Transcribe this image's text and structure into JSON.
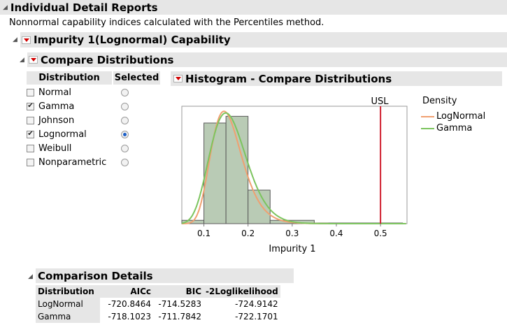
{
  "report": {
    "title": "Individual Detail Reports",
    "note": "Nonnormal capability indices calculated with the Percentiles method."
  },
  "capability": {
    "title": "Impurity 1(Lognormal) Capability"
  },
  "compare": {
    "title": "Compare Distributions",
    "col_distribution": "Distribution",
    "col_selected": "Selected",
    "rows": [
      {
        "label": "Normal",
        "checked": false,
        "selected": false
      },
      {
        "label": "Gamma",
        "checked": true,
        "selected": false
      },
      {
        "label": "Johnson",
        "checked": false,
        "selected": false
      },
      {
        "label": "Lognormal",
        "checked": true,
        "selected": true
      },
      {
        "label": "Weibull",
        "checked": false,
        "selected": false
      },
      {
        "label": "Nonparametric",
        "checked": false,
        "selected": false
      }
    ]
  },
  "histogram": {
    "title": "Histogram - Compare Distributions",
    "usl_label": "USL",
    "legend_title": "Density",
    "legend": [
      {
        "name": "LogNormal",
        "color": "#f0a070"
      },
      {
        "name": "Gamma",
        "color": "#7cc45e"
      }
    ]
  },
  "chart_data": {
    "type": "histogram",
    "xlabel": "Impurity 1",
    "xlim": [
      0.05,
      0.56
    ],
    "xticks": [
      "0.1",
      "0.2",
      "0.3",
      "0.4",
      "0.5"
    ],
    "xtick_values": [
      0.1,
      0.2,
      0.3,
      0.4,
      0.5
    ],
    "usl": 0.5,
    "bins": [
      {
        "from": 0.05,
        "to": 0.1,
        "height": 0.02
      },
      {
        "from": 0.1,
        "to": 0.15,
        "height": 0.6
      },
      {
        "from": 0.15,
        "to": 0.2,
        "height": 0.64
      },
      {
        "from": 0.2,
        "to": 0.25,
        "height": 0.2
      },
      {
        "from": 0.25,
        "to": 0.35,
        "height": 0.02
      },
      {
        "from": 0.35,
        "to": 0.55,
        "height": 0.004
      }
    ],
    "curves": [
      {
        "name": "LogNormal",
        "color": "#f0a070",
        "mu": -1.87,
        "sigma": 0.24
      },
      {
        "name": "Gamma",
        "color": "#7cc45e",
        "shape": 14,
        "scale": 0.0115
      }
    ],
    "bar_color": "#b9cbb5",
    "usl_color": "#d01f2f"
  },
  "comparison": {
    "title": "Comparison Details",
    "headers": [
      "Distribution",
      "AICc",
      "BIC",
      "-2Loglikelihood"
    ],
    "rows": [
      [
        "LogNormal",
        "-720.8464",
        "-714.5283",
        "-724.9142"
      ],
      [
        "Gamma",
        "-718.1023",
        "-711.7842",
        "-722.1701"
      ]
    ]
  }
}
